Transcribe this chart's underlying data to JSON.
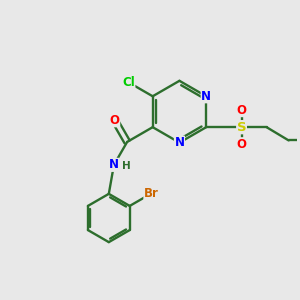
{
  "background_color": "#e8e8e8",
  "bond_color": "#2d6e2d",
  "atom_colors": {
    "N": "#0000ff",
    "O": "#ff0000",
    "S": "#cccc00",
    "Cl": "#00cc00",
    "Br": "#cc6600",
    "C": "#2d6e2d",
    "H": "#2d6e2d"
  },
  "fig_width": 3.0,
  "fig_height": 3.0,
  "dpi": 100
}
